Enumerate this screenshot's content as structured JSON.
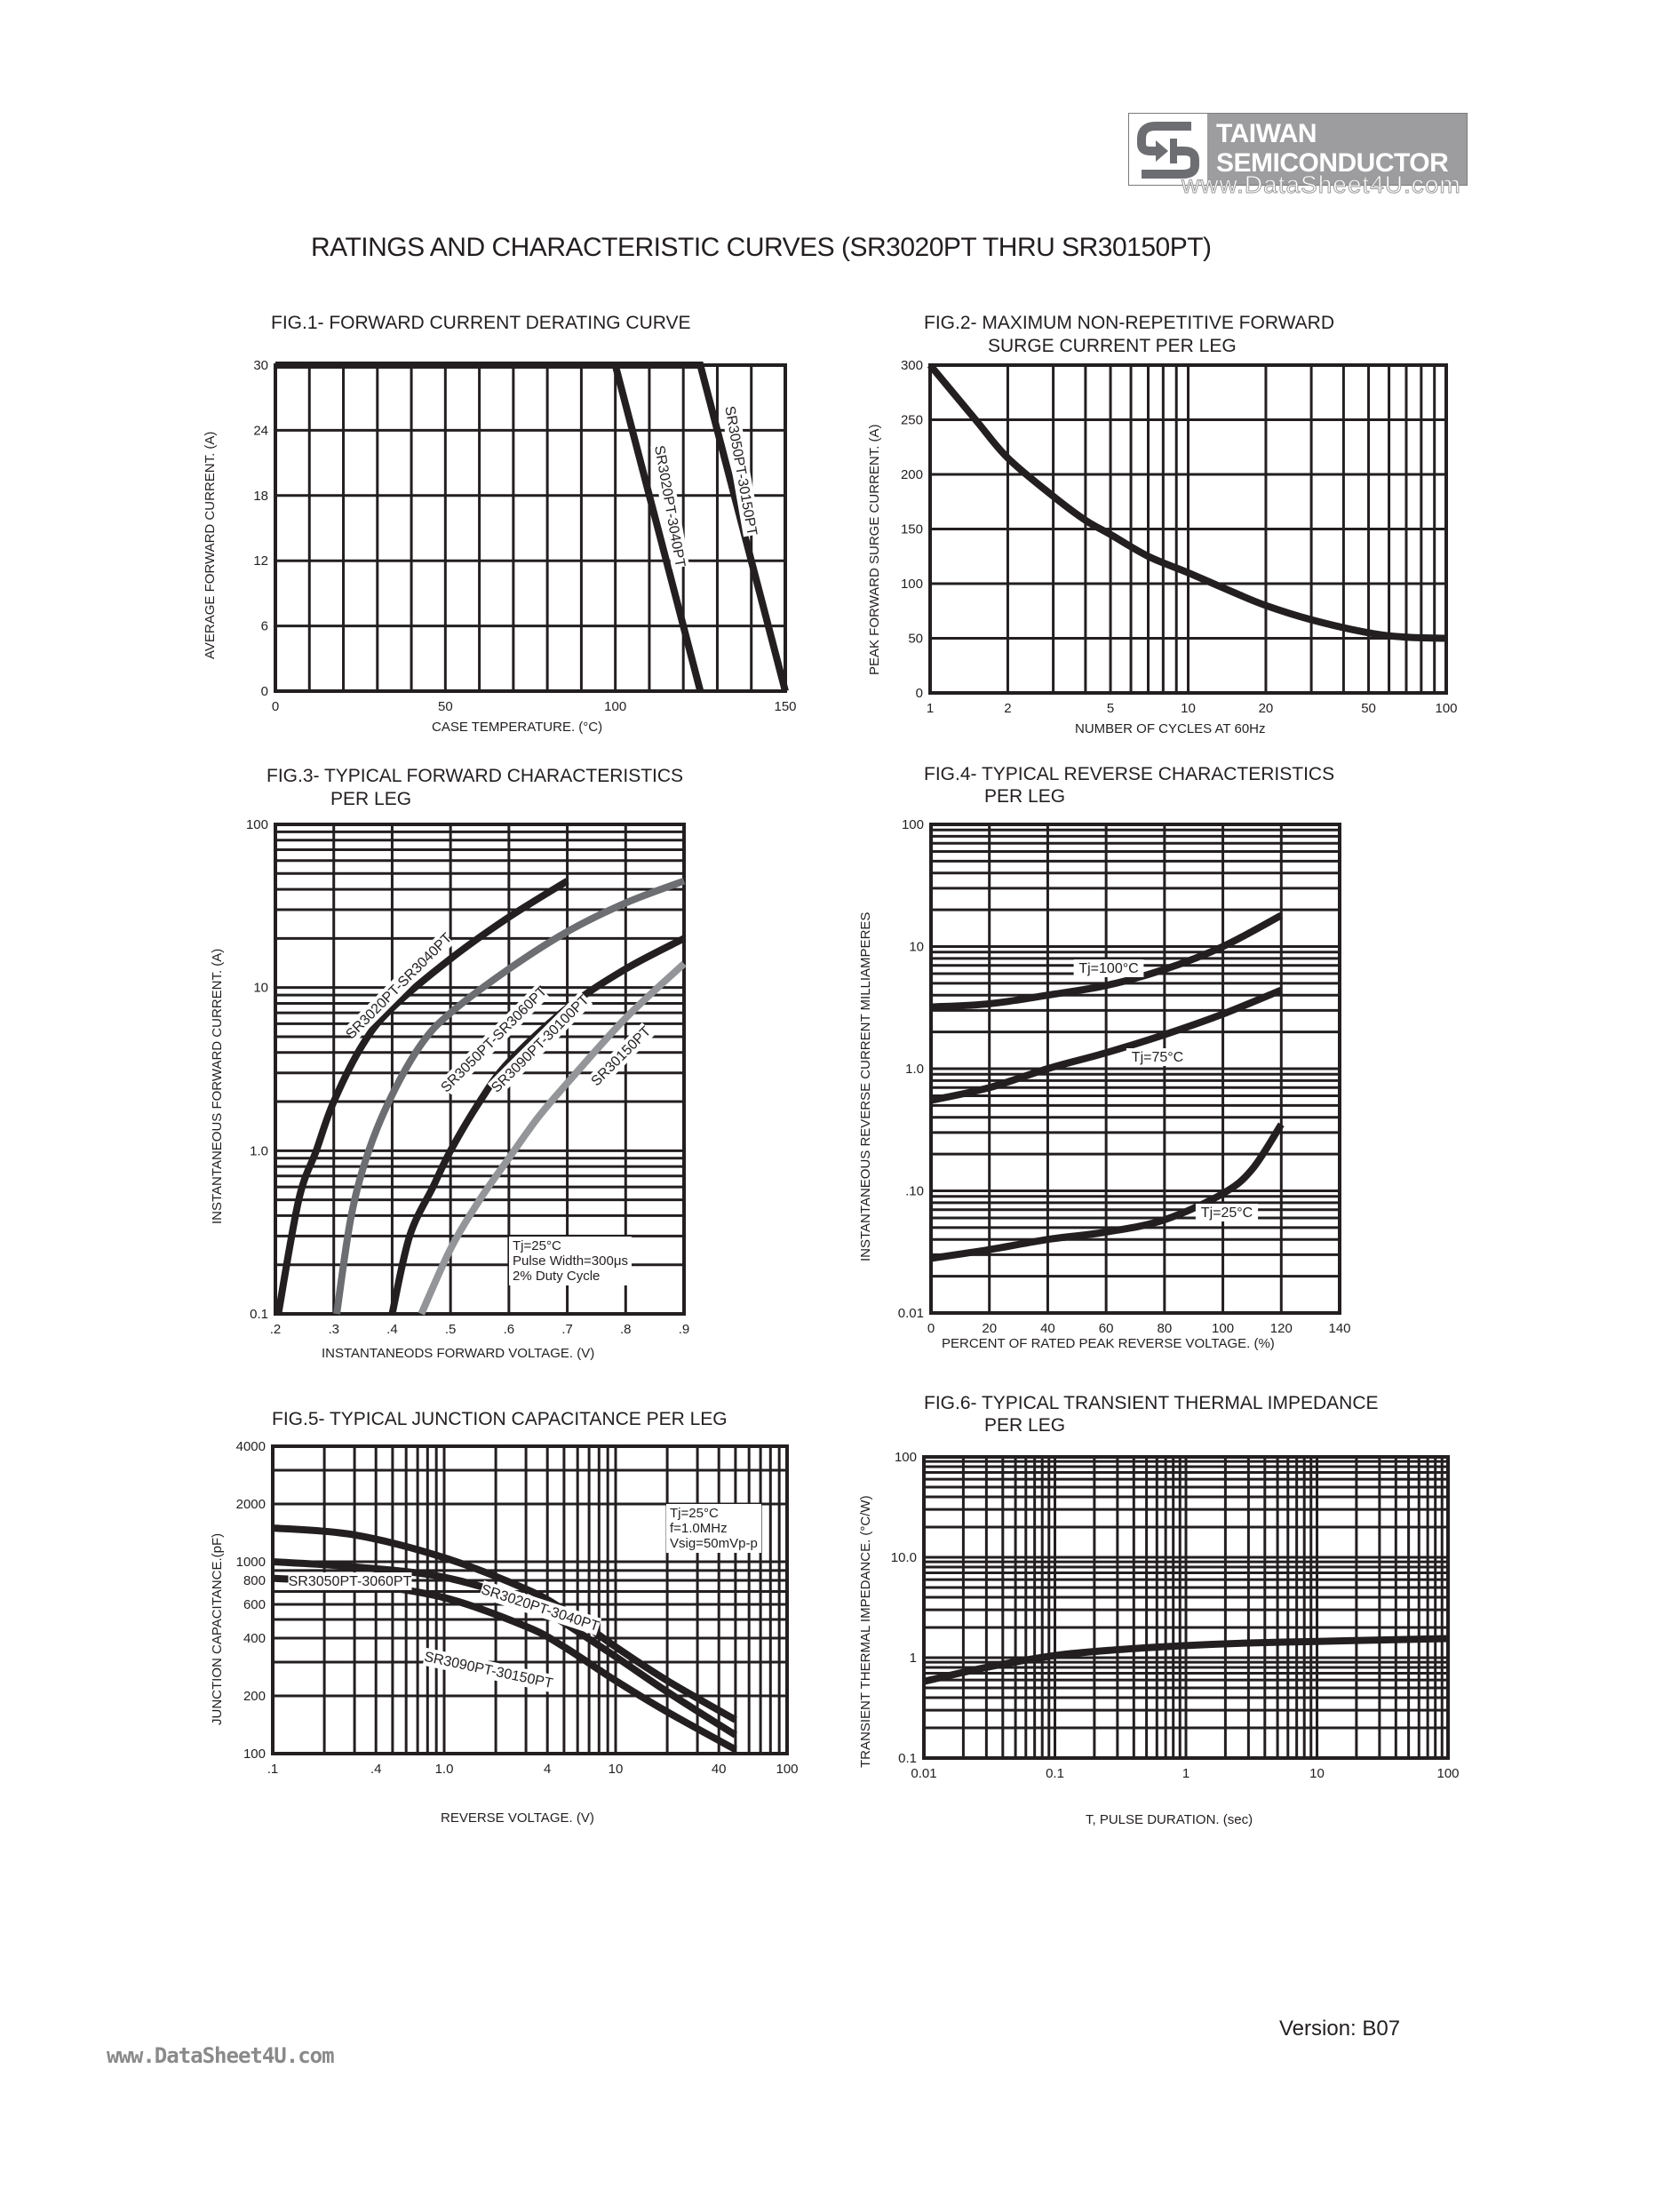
{
  "header": {
    "brand_line1": "TAIWAN",
    "brand_line2": "SEMICONDUCTOR",
    "watermark": "www.DataSheet4U.com",
    "logo_icon": "ts-logo-icon",
    "brand_color": "#9d9d9f"
  },
  "page_title": "RATINGS AND CHARACTERISTIC CURVES (SR3020PT THRU SR30150PT)",
  "footer": {
    "version": "Version: B07",
    "url": "www.DataSheet4U.com"
  },
  "figures": {
    "fig1": {
      "title": "FIG.1- FORWARD CURRENT DERATING CURVE",
      "xlabel": "CASE TEMPERATURE. (°C)",
      "ylabel": "AVERAGE FORWARD CURRENT. (A)",
      "xticks": [
        "0",
        "50",
        "100",
        "150"
      ],
      "yticks": [
        "0",
        "6",
        "12",
        "18",
        "24",
        "30"
      ],
      "curve_labels": [
        "SR3020PT-3040PT",
        "SR3050PT-30150PT"
      ]
    },
    "fig2": {
      "title_line1": "FIG.2- MAXIMUM NON-REPETITIVE FORWARD",
      "title_line2": "SURGE CURRENT PER LEG",
      "xlabel": "NUMBER OF CYCLES AT 60Hz",
      "ylabel": "PEAK FORWARD SURGE CURRENT. (A)",
      "xticks": [
        "1",
        "2",
        "5",
        "10",
        "20",
        "50",
        "100"
      ],
      "yticks": [
        "0",
        "50",
        "100",
        "150",
        "200",
        "250",
        "300"
      ]
    },
    "fig3": {
      "title_line1": "FIG.3- TYPICAL FORWARD CHARACTERISTICS",
      "title_line2": "PER LEG",
      "xlabel": "INSTANTANEODS FORWARD VOLTAGE. (V)",
      "ylabel": "INSTANTANEOUS FORWARD CURRENT. (A)",
      "xticks": [
        ".2",
        ".3",
        ".4",
        ".5",
        ".6",
        ".7",
        ".8",
        ".9"
      ],
      "yticks": [
        "0.1",
        "1.0",
        "10",
        "100"
      ],
      "note_line1": "Tj=25°C",
      "note_line2": "Pulse Width=300μs",
      "note_line3": "2% Duty Cycle",
      "curve_labels": [
        "SR3020PT-SR3040PT",
        "SR3050PT-SR3060PT",
        "SR3090PT-30100PT",
        "SR30150PT"
      ]
    },
    "fig4": {
      "title_line1": "FIG.4- TYPICAL REVERSE CHARACTERISTICS",
      "title_line2": "PER LEG",
      "xlabel": "PERCENT OF RATED PEAK REVERSE VOLTAGE. (%)",
      "ylabel": "INSTANTANEOUS REVERSE CURRENT MILLIAMPERES",
      "xticks": [
        "0",
        "20",
        "40",
        "60",
        "80",
        "100",
        "120",
        "140"
      ],
      "yticks": [
        "0.01",
        ".10",
        "1.0",
        "10",
        "100"
      ],
      "curve_labels": [
        "Tj=100°C",
        "Tj=75°C",
        "Tj=25°C"
      ]
    },
    "fig5": {
      "title": "FIG.5- TYPICAL JUNCTION CAPACITANCE PER LEG",
      "xlabel": "REVERSE VOLTAGE. (V)",
      "ylabel": "JUNCTION CAPACITANCE.(pF)",
      "xticks": [
        ".1",
        ".4",
        "1.0",
        "4",
        "10",
        "40",
        "100"
      ],
      "yticks": [
        "100",
        "200",
        "400",
        "600",
        "800",
        "1000",
        "2000",
        "4000"
      ],
      "note_line1": "Tj=25°C",
      "note_line2": "f=1.0MHz",
      "note_line3": "Vsig=50mVp-p",
      "curve_labels": [
        "SR3020PT-3040PT",
        "SR3050PT-3060PT",
        "SR3090PT-30150PT"
      ]
    },
    "fig6": {
      "title_line1": "FIG.6- TYPICAL TRANSIENT THERMAL IMPEDANCE",
      "title_line2": "PER LEG",
      "xlabel": "T, PULSE DURATION. (sec)",
      "ylabel": "TRANSIENT THERMAL IMPEDANCE. (°C/W)",
      "xticks": [
        "0.01",
        "0.1",
        "1",
        "10",
        "100"
      ],
      "yticks": [
        "0.1",
        "1",
        "10.0",
        "100"
      ]
    }
  },
  "chart_data": [
    {
      "id": "fig1",
      "type": "line",
      "title": "FIG.1- FORWARD CURRENT DERATING CURVE",
      "xlabel": "CASE TEMPERATURE. (°C)",
      "ylabel": "AVERAGE FORWARD CURRENT. (A)",
      "xlim": [
        0,
        150
      ],
      "ylim": [
        0,
        30
      ],
      "xscale": "linear",
      "yscale": "linear",
      "grid": true,
      "series": [
        {
          "name": "SR3020PT-3040PT",
          "color": "#231f20",
          "x": [
            0,
            100,
            125
          ],
          "y": [
            30,
            30,
            0
          ]
        },
        {
          "name": "SR3050PT-30150PT",
          "color": "#231f20",
          "x": [
            0,
            125,
            150
          ],
          "y": [
            30,
            30,
            0
          ]
        }
      ]
    },
    {
      "id": "fig2",
      "type": "line",
      "title": "FIG.2- MAXIMUM NON-REPETITIVE FORWARD SURGE CURRENT PER LEG",
      "xlabel": "NUMBER OF CYCLES AT 60Hz",
      "ylabel": "PEAK FORWARD SURGE CURRENT. (A)",
      "xlim": [
        1,
        100
      ],
      "ylim": [
        0,
        300
      ],
      "xscale": "log",
      "yscale": "linear",
      "grid": true,
      "series": [
        {
          "name": "Surge current",
          "color": "#231f20",
          "x": [
            1,
            1.5,
            2,
            3,
            4,
            5,
            7,
            10,
            15,
            20,
            30,
            50,
            70,
            100
          ],
          "y": [
            300,
            250,
            215,
            180,
            158,
            145,
            125,
            110,
            92,
            80,
            67,
            55,
            51,
            50
          ]
        }
      ]
    },
    {
      "id": "fig3",
      "type": "line",
      "title": "FIG.3- TYPICAL FORWARD CHARACTERISTICS PER LEG",
      "xlabel": "INSTANTANEODS FORWARD VOLTAGE. (V)",
      "ylabel": "INSTANTANEOUS FORWARD CURRENT. (A)",
      "xlim": [
        0.2,
        0.9
      ],
      "ylim": [
        0.1,
        100
      ],
      "xscale": "linear",
      "yscale": "log",
      "grid": true,
      "annotations": [
        "Tj=25°C",
        "Pulse Width=300μs",
        "2% Duty Cycle"
      ],
      "series": [
        {
          "name": "SR3020PT-SR3040PT",
          "color": "#231f20",
          "x": [
            0.205,
            0.24,
            0.27,
            0.3,
            0.35,
            0.4,
            0.5,
            0.6,
            0.7
          ],
          "y": [
            0.1,
            0.5,
            1.0,
            2.0,
            4.5,
            7.5,
            15,
            27,
            45
          ]
        },
        {
          "name": "SR3050PT-SR3060PT",
          "color": "#6d6e71",
          "x": [
            0.305,
            0.33,
            0.36,
            0.4,
            0.45,
            0.5,
            0.6,
            0.7,
            0.8,
            0.9
          ],
          "y": [
            0.1,
            0.4,
            1.0,
            2.2,
            4.5,
            7,
            13,
            22,
            33,
            45
          ]
        },
        {
          "name": "SR3090PT-30100PT",
          "color": "#231f20",
          "x": [
            0.4,
            0.43,
            0.47,
            0.5,
            0.55,
            0.6,
            0.7,
            0.8,
            0.9
          ],
          "y": [
            0.1,
            0.3,
            0.6,
            1.0,
            2.0,
            3.5,
            7.5,
            13,
            20
          ]
        },
        {
          "name": "SR30150PT",
          "color": "#939598",
          "x": [
            0.45,
            0.5,
            0.55,
            0.6,
            0.65,
            0.7,
            0.8,
            0.9
          ],
          "y": [
            0.1,
            0.25,
            0.5,
            0.9,
            1.6,
            2.6,
            6.5,
            14
          ]
        }
      ]
    },
    {
      "id": "fig4",
      "type": "line",
      "title": "FIG.4- TYPICAL REVERSE CHARACTERISTICS PER LEG",
      "xlabel": "PERCENT OF RATED PEAK REVERSE VOLTAGE. (%)",
      "ylabel": "INSTANTANEOUS REVERSE CURRENT MILLIAMPERES",
      "xlim": [
        0,
        140
      ],
      "ylim": [
        0.01,
        100
      ],
      "xscale": "linear",
      "yscale": "log",
      "grid": true,
      "series": [
        {
          "name": "Tj=100°C",
          "color": "#231f20",
          "x": [
            0,
            20,
            40,
            60,
            80,
            100,
            120
          ],
          "y": [
            3.2,
            3.4,
            4.0,
            4.8,
            6.5,
            10,
            18
          ]
        },
        {
          "name": "Tj=75°C",
          "color": "#231f20",
          "x": [
            0,
            20,
            40,
            60,
            80,
            100,
            120
          ],
          "y": [
            0.55,
            0.7,
            1.0,
            1.35,
            1.9,
            2.8,
            4.4
          ]
        },
        {
          "name": "Tj=25°C",
          "color": "#231f20",
          "x": [
            0,
            20,
            40,
            60,
            80,
            100,
            110,
            120
          ],
          "y": [
            0.028,
            0.033,
            0.04,
            0.046,
            0.058,
            0.095,
            0.15,
            0.35
          ]
        }
      ]
    },
    {
      "id": "fig5",
      "type": "line",
      "title": "FIG.5- TYPICAL JUNCTION CAPACITANCE PER LEG",
      "xlabel": "REVERSE VOLTAGE. (V)",
      "ylabel": "JUNCTION CAPACITANCE.(pF)",
      "xlim": [
        0.1,
        100
      ],
      "ylim": [
        100,
        4000
      ],
      "xscale": "log",
      "yscale": "log",
      "grid": true,
      "annotations": [
        "Tj=25°C",
        "f=1.0MHz",
        "Vsig=50mVp-p"
      ],
      "series": [
        {
          "name": "SR3020PT-3040PT",
          "color": "#231f20",
          "x": [
            0.1,
            0.3,
            1.0,
            3,
            5,
            10,
            20,
            50
          ],
          "y": [
            1500,
            1380,
            1050,
            720,
            560,
            360,
            240,
            150
          ]
        },
        {
          "name": "SR3050PT-3060PT",
          "color": "#231f20",
          "x": [
            0.1,
            0.3,
            1.0,
            3,
            5,
            10,
            20,
            50
          ],
          "y": [
            1000,
            940,
            830,
            620,
            480,
            320,
            210,
            125
          ]
        },
        {
          "name": "SR3090PT-30150PT",
          "color": "#231f20",
          "x": [
            0.1,
            0.3,
            1.0,
            3,
            5,
            10,
            20,
            50
          ],
          "y": [
            820,
            770,
            650,
            460,
            360,
            240,
            165,
            105
          ]
        }
      ]
    },
    {
      "id": "fig6",
      "type": "line",
      "title": "FIG.6- TYPICAL TRANSIENT THERMAL IMPEDANCE PER LEG",
      "xlabel": "T, PULSE DURATION. (sec)",
      "ylabel": "TRANSIENT THERMAL IMPEDANCE. (°C/W)",
      "xlim": [
        0.01,
        100
      ],
      "ylim": [
        0.1,
        100
      ],
      "xscale": "log",
      "yscale": "log",
      "grid": true,
      "series": [
        {
          "name": "Thermal impedance",
          "color": "#231f20",
          "x": [
            0.01,
            0.03,
            0.1,
            0.3,
            1,
            3,
            10,
            30,
            100
          ],
          "y": [
            0.58,
            0.8,
            1.05,
            1.2,
            1.32,
            1.4,
            1.45,
            1.5,
            1.55
          ]
        }
      ]
    }
  ]
}
